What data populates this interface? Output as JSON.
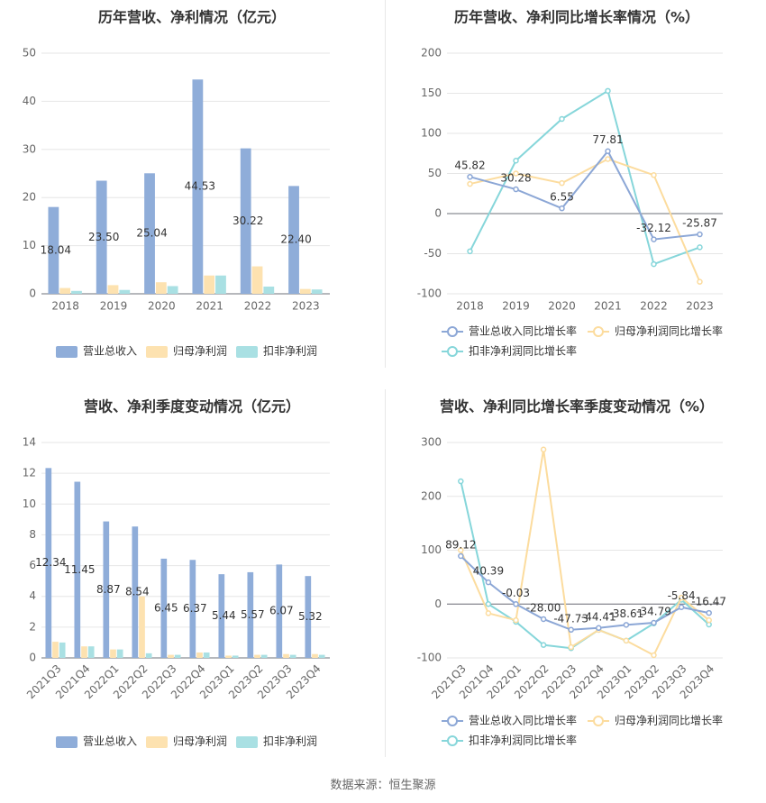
{
  "source": "数据来源：恒生聚源",
  "colors": {
    "revenue": "#8fadd9",
    "parent": "#fde2b0",
    "deducted": "#a9e0e3",
    "revenue_line": "#8ca7d6",
    "parent_line": "#fcdc9e",
    "deducted_line": "#86d6da",
    "title": "#333333",
    "axis_text": "#666666",
    "grid": "#e6e6e6"
  },
  "chart_data": [
    {
      "id": "annual-amount",
      "type": "bar",
      "title": "历年营收、净利情况（亿元）",
      "categories": [
        "2018",
        "2019",
        "2020",
        "2021",
        "2022",
        "2023"
      ],
      "ylim": [
        0,
        50
      ],
      "yticks": [
        0,
        10,
        20,
        30,
        40,
        50
      ],
      "series": [
        {
          "name": "营业总收入",
          "values": [
            18.04,
            23.5,
            25.04,
            44.53,
            30.22,
            22.4
          ],
          "labels": [
            "18.04",
            "23.50",
            "25.04",
            "44.53",
            "30.22",
            "22.40"
          ]
        },
        {
          "name": "归母净利润",
          "values": [
            1.2,
            1.8,
            2.4,
            3.8,
            5.7,
            1.0
          ]
        },
        {
          "name": "扣非净利润",
          "values": [
            0.6,
            0.8,
            1.6,
            3.8,
            1.5,
            0.9
          ]
        }
      ],
      "legend": "bottom",
      "grid": true
    },
    {
      "id": "annual-growth",
      "type": "line",
      "title": "历年营收、净利同比增长率情况（%）",
      "categories": [
        "2018",
        "2019",
        "2020",
        "2021",
        "2022",
        "2023"
      ],
      "ylim": [
        -100,
        200
      ],
      "yticks": [
        -100,
        -50,
        0,
        50,
        100,
        150,
        200
      ],
      "series": [
        {
          "name": "营业总收入同比增长率",
          "values": [
            45.82,
            30.28,
            6.55,
            77.81,
            -32.12,
            -25.87
          ],
          "labels": [
            "45.82",
            "30.28",
            "6.55",
            "77.81",
            "-32.12",
            "-25.87"
          ]
        },
        {
          "name": "归母净利润同比增长率",
          "values": [
            37,
            50,
            38,
            68,
            48,
            -85
          ]
        },
        {
          "name": "扣非净利润同比增长率",
          "values": [
            -47,
            66,
            118,
            153,
            -63,
            -42
          ]
        }
      ],
      "legend": "bottom",
      "grid": true
    },
    {
      "id": "quarterly-amount",
      "type": "bar",
      "title": "营收、净利季度变动情况（亿元）",
      "categories": [
        "2021Q3",
        "2021Q4",
        "2022Q1",
        "2022Q2",
        "2022Q3",
        "2022Q4",
        "2023Q1",
        "2023Q2",
        "2023Q3",
        "2023Q4"
      ],
      "ylim": [
        0,
        14
      ],
      "yticks": [
        0,
        2,
        4,
        6,
        8,
        10,
        12,
        14
      ],
      "series": [
        {
          "name": "营业总收入",
          "values": [
            12.34,
            11.45,
            8.87,
            8.54,
            6.45,
            6.37,
            5.44,
            5.57,
            6.07,
            5.32
          ],
          "labels": [
            "12.34",
            "11.45",
            "8.87",
            "8.54",
            "6.45",
            "6.37",
            "5.44",
            "5.57",
            "6.07",
            "5.32"
          ]
        },
        {
          "name": "归母净利润",
          "values": [
            1.05,
            0.75,
            0.55,
            4.0,
            0.2,
            0.35,
            0.15,
            0.2,
            0.25,
            0.25
          ]
        },
        {
          "name": "扣非净利润",
          "values": [
            1.0,
            0.75,
            0.55,
            0.3,
            0.2,
            0.35,
            0.15,
            0.2,
            0.2,
            0.2
          ]
        }
      ],
      "legend": "bottom",
      "grid": true
    },
    {
      "id": "quarterly-growth",
      "type": "line",
      "title": "营收、净利同比增长率季度变动情况（%）",
      "categories": [
        "2021Q3",
        "2021Q4",
        "2022Q1",
        "2022Q2",
        "2022Q3",
        "2022Q4",
        "2023Q1",
        "2023Q2",
        "2023Q3",
        "2023Q4"
      ],
      "ylim": [
        -100,
        300
      ],
      "yticks": [
        -100,
        0,
        100,
        200,
        300
      ],
      "series": [
        {
          "name": "营业总收入同比增长率",
          "values": [
            89.12,
            40.39,
            -0.03,
            -28.0,
            -47.73,
            -44.41,
            -38.61,
            -34.79,
            -5.84,
            -16.47
          ],
          "labels": [
            "89.12",
            "40.39",
            "-0.03",
            "-28.00",
            "-47.73",
            "-44.41",
            "-38.61",
            "-34.79",
            "-5.84",
            "-16.47"
          ]
        },
        {
          "name": "归母净利润同比增长率",
          "values": [
            100,
            -17,
            -30,
            287,
            -80,
            -48,
            -68,
            -95,
            12,
            -30
          ]
        },
        {
          "name": "扣非净利润同比增长率",
          "values": [
            228,
            0,
            -33,
            -76,
            -82,
            -48,
            -68,
            -36,
            8,
            -38
          ]
        }
      ],
      "legend": "bottom",
      "grid": true
    }
  ]
}
